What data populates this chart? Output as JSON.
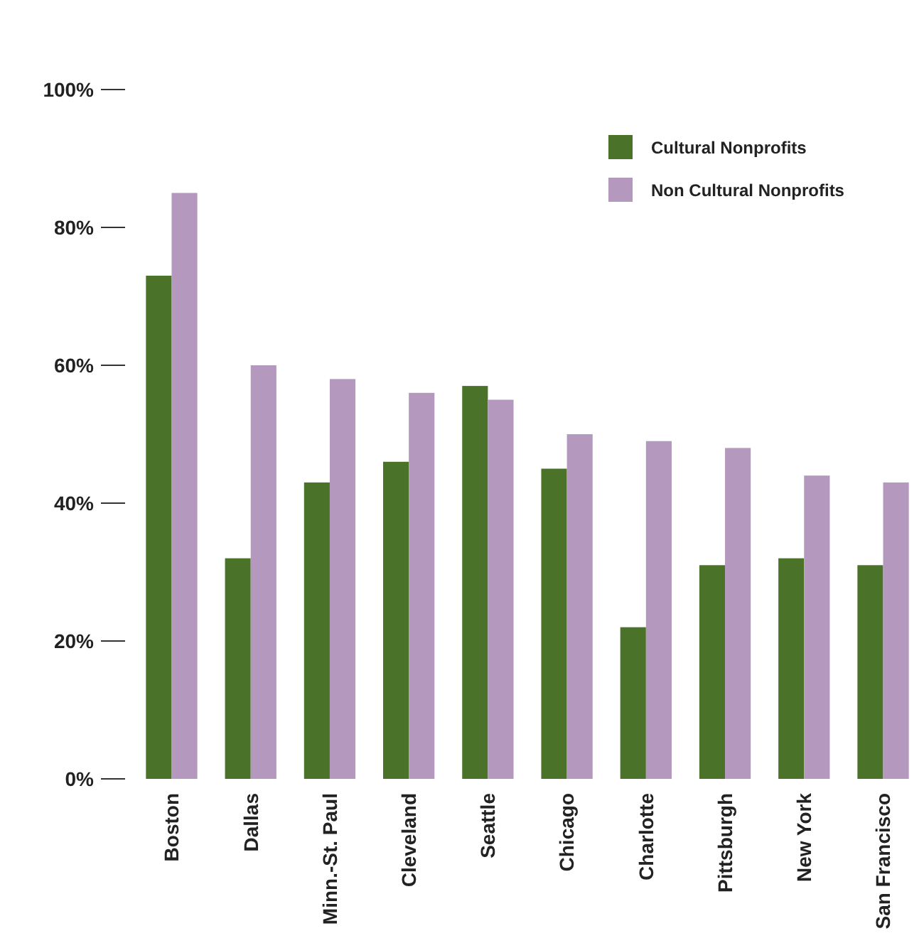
{
  "chart_data": {
    "type": "bar",
    "categories": [
      "Boston",
      "Dallas",
      "Minn.-St. Paul",
      "Cleveland",
      "Seattle",
      "Chicago",
      "Charlotte",
      "Pittsburgh",
      "New York",
      "San Francisco"
    ],
    "series": [
      {
        "name": "Cultural Nonprofits",
        "color": "#4a7229",
        "values": [
          73,
          32,
          43,
          46,
          57,
          45,
          22,
          31,
          32,
          31
        ]
      },
      {
        "name": "Non Cultural Nonprofits",
        "color": "#b498bd",
        "values": [
          85,
          60,
          58,
          56,
          55,
          50,
          49,
          48,
          44,
          43
        ]
      }
    ],
    "ylim": [
      0,
      100
    ],
    "yticks": [
      {
        "value": 0,
        "label": "0%"
      },
      {
        "value": 20,
        "label": "20%"
      },
      {
        "value": 40,
        "label": "40%"
      },
      {
        "value": 60,
        "label": "60%"
      },
      {
        "value": 80,
        "label": "80%"
      },
      {
        "value": 100,
        "label": "100%"
      }
    ],
    "grid": false,
    "legend": "top right"
  }
}
